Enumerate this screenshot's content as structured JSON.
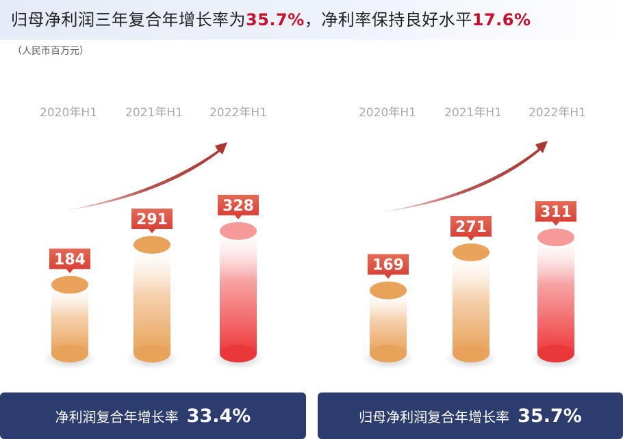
{
  "header": {
    "title_part1": "归母净利润三年复合年增长率为",
    "title_value1": "35.7%",
    "title_part2": "，净利率保持良好水平",
    "title_value2": "17.6%",
    "unit": "（人民币百万元）"
  },
  "colors": {
    "accent_red": "#c8102e",
    "bar_orange": "#e8a259",
    "bar_red": "#ef3a3c",
    "footer_navy": "#2d3c6f",
    "arrow_red": "#a93531"
  },
  "chart_data": [
    {
      "type": "bar",
      "categories": [
        "2020年H1",
        "2021年H1",
        "2022年H1"
      ],
      "values": [
        184,
        291,
        328
      ],
      "footer_label": "净利润复合年增长率",
      "footer_value": "33.4%"
    },
    {
      "type": "bar",
      "categories": [
        "2020年H1",
        "2021年H1",
        "2022年H1"
      ],
      "values": [
        169,
        271,
        311
      ],
      "footer_label": "归母净利润复合年增长率",
      "footer_value": "35.7%"
    }
  ]
}
